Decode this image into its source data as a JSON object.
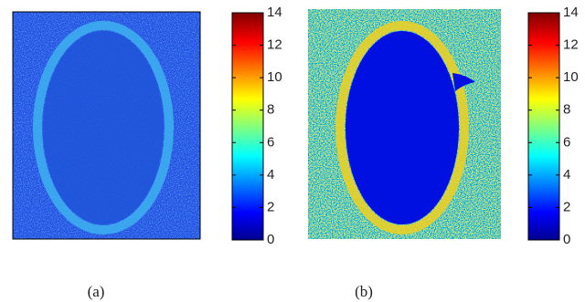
{
  "chart_data": [
    {
      "type": "heatmap",
      "caption": "(a)",
      "clim": [
        0,
        14
      ],
      "cticks": [
        0,
        2,
        4,
        6,
        8,
        10,
        12,
        14
      ]
    },
    {
      "type": "heatmap",
      "caption": "(b)",
      "clim": [
        0,
        14
      ],
      "cticks": [
        0,
        2,
        4,
        6,
        8,
        10,
        12,
        14
      ]
    }
  ]
}
